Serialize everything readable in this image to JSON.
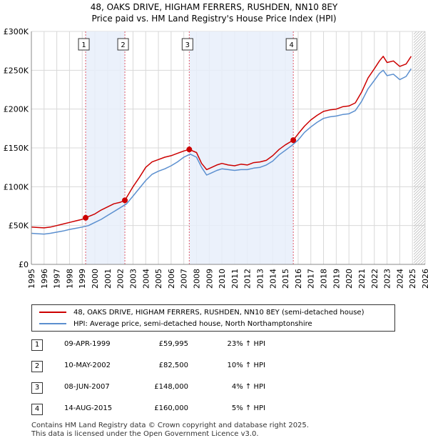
{
  "title_line1": "48, OAKS DRIVE, HIGHAM FERRERS, RUSHDEN, NN10 8EY",
  "title_line2": "Price paid vs. HM Land Registry's House Price Index (HPI)",
  "colors": {
    "property": "#cc0000",
    "hpi": "#5b8fcf",
    "band": "#e8eefa",
    "sale_line": "#e05a6a",
    "grid": "#d8d8d8"
  },
  "legend": {
    "property_label": "48, OAKS DRIVE, HIGHAM FERRERS, RUSHDEN, NN10 8EY (semi-detached house)",
    "hpi_label": "HPI: Average price, semi-detached house, North Northamptonshire"
  },
  "sales": [
    {
      "num": "1",
      "date": "09-APR-1999",
      "price": "£59,995",
      "hpi": "23% ↑ HPI"
    },
    {
      "num": "2",
      "date": "10-MAY-2002",
      "price": "£82,500",
      "hpi": "10% ↑ HPI"
    },
    {
      "num": "3",
      "date": "08-JUN-2007",
      "price": "£148,000",
      "hpi": "4% ↑ HPI"
    },
    {
      "num": "4",
      "date": "14-AUG-2015",
      "price": "£160,000",
      "hpi": "5% ↑ HPI"
    }
  ],
  "footer_line1": "Contains HM Land Registry data © Crown copyright and database right 2025.",
  "footer_line2": "This data is licensed under the Open Government Licence v3.0.",
  "chart_data": {
    "type": "line",
    "title": "48, OAKS DRIVE, HIGHAM FERRERS, RUSHDEN, NN10 8EY — Price paid vs. HM Land Registry's House Price Index (HPI)",
    "xlim": [
      1995,
      2026
    ],
    "ylim": [
      0,
      300000
    ],
    "x_ticks": [
      1995,
      1996,
      1997,
      1998,
      1999,
      2000,
      2001,
      2002,
      2003,
      2004,
      2005,
      2006,
      2007,
      2008,
      2009,
      2010,
      2011,
      2012,
      2013,
      2014,
      2015,
      2016,
      2017,
      2018,
      2019,
      2020,
      2021,
      2022,
      2023,
      2024,
      2025,
      2026
    ],
    "y_ticks": [
      {
        "value": 0,
        "label": "£0"
      },
      {
        "value": 50000,
        "label": "£50K"
      },
      {
        "value": 100000,
        "label": "£100K"
      },
      {
        "value": 150000,
        "label": "£150K"
      },
      {
        "value": 200000,
        "label": "£200K"
      },
      {
        "value": 250000,
        "label": "£250K"
      },
      {
        "value": 300000,
        "label": "£300K"
      }
    ],
    "grid": true,
    "future_hatch_from": 2025.1,
    "shaded_bands": [
      [
        1999.27,
        2002.36
      ],
      [
        2007.43,
        2015.62
      ]
    ],
    "sale_points": [
      {
        "num": "1",
        "x": 1999.27,
        "y": 59995
      },
      {
        "num": "2",
        "x": 2002.36,
        "y": 82500
      },
      {
        "num": "3",
        "x": 2007.43,
        "y": 148000
      },
      {
        "num": "4",
        "x": 2015.62,
        "y": 160000
      }
    ],
    "series": [
      {
        "name": "48, OAKS DRIVE, HIGHAM FERRERS, RUSHDEN, NN10 8EY (semi-detached house)",
        "x": [
          1995,
          1995.5,
          1996,
          1996.5,
          1997,
          1997.5,
          1998,
          1998.5,
          1999,
          1999.27,
          2000,
          2000.5,
          2001,
          2001.5,
          2002,
          2002.36,
          2003,
          2003.5,
          2004,
          2004.5,
          2005,
          2005.5,
          2006,
          2006.5,
          2007,
          2007.43,
          2008,
          2008.4,
          2008.8,
          2009.2,
          2009.6,
          2010,
          2010.5,
          2011,
          2011.5,
          2012,
          2012.5,
          2013,
          2013.5,
          2014,
          2014.5,
          2015,
          2015.62,
          2016,
          2016.5,
          2017,
          2017.5,
          2018,
          2018.5,
          2019,
          2019.5,
          2020,
          2020.5,
          2021,
          2021.5,
          2022,
          2022.4,
          2022.7,
          2023,
          2023.5,
          2024,
          2024.5,
          2024.9
        ],
        "values": [
          48000,
          47500,
          47000,
          48000,
          50000,
          52000,
          54000,
          56000,
          58000,
          59995,
          65000,
          70000,
          74000,
          78000,
          80000,
          82500,
          100000,
          112000,
          125000,
          132000,
          135000,
          138000,
          140000,
          143000,
          146000,
          148000,
          144000,
          130000,
          122000,
          125000,
          128000,
          130000,
          128000,
          127000,
          129000,
          128000,
          131000,
          132000,
          134000,
          140000,
          148000,
          154000,
          160000,
          168000,
          178000,
          186000,
          192000,
          197000,
          199000,
          200000,
          203000,
          204000,
          208000,
          222000,
          240000,
          252000,
          262000,
          268000,
          260000,
          262000,
          255000,
          258000,
          268000
        ]
      },
      {
        "name": "HPI: Average price, semi-detached house, North Northamptonshire",
        "x": [
          1995,
          1995.5,
          1996,
          1996.5,
          1997,
          1997.5,
          1998,
          1998.5,
          1999,
          1999.5,
          2000,
          2000.5,
          2001,
          2001.5,
          2002,
          2002.5,
          2003,
          2003.5,
          2004,
          2004.5,
          2005,
          2005.5,
          2006,
          2006.5,
          2007,
          2007.5,
          2008,
          2008.4,
          2008.8,
          2009.2,
          2009.6,
          2010,
          2010.5,
          2011,
          2011.5,
          2012,
          2012.5,
          2013,
          2013.5,
          2014,
          2014.5,
          2015,
          2015.5,
          2016,
          2016.5,
          2017,
          2017.5,
          2018,
          2018.5,
          2019,
          2019.5,
          2020,
          2020.5,
          2021,
          2021.5,
          2022,
          2022.4,
          2022.7,
          2023,
          2023.5,
          2024,
          2024.5,
          2024.9
        ],
        "values": [
          40000,
          39500,
          39000,
          40000,
          41500,
          43000,
          45000,
          46500,
          48000,
          50000,
          54000,
          58000,
          63000,
          68000,
          73000,
          78000,
          88000,
          98000,
          108000,
          116000,
          120000,
          123000,
          127000,
          132000,
          138000,
          142000,
          138000,
          125000,
          115000,
          118000,
          121000,
          123000,
          122000,
          121000,
          122000,
          122000,
          124000,
          125000,
          128000,
          133000,
          141000,
          147000,
          153000,
          160000,
          170000,
          177000,
          183000,
          188000,
          190000,
          191000,
          193000,
          194000,
          198000,
          210000,
          226000,
          237000,
          246000,
          250000,
          243000,
          245000,
          238000,
          242000,
          252000
        ]
      }
    ]
  }
}
